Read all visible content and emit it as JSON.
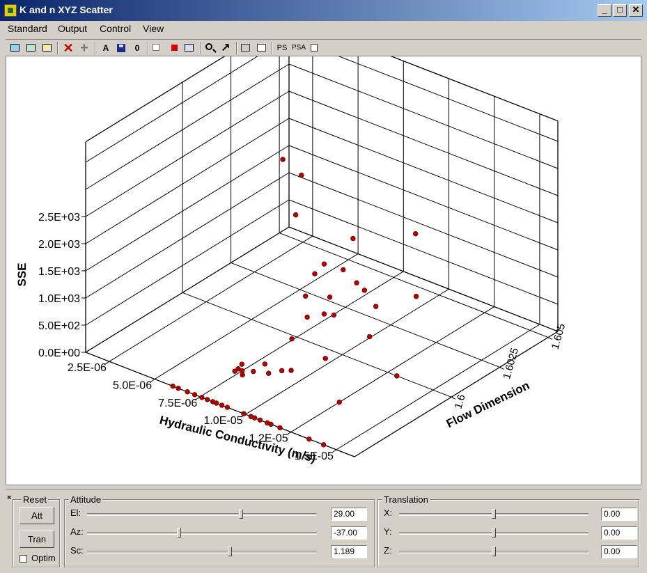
{
  "window": {
    "title": "K and n XYZ Scatter",
    "min_glyph": "_",
    "max_glyph": "□",
    "close_glyph": "✕"
  },
  "menu": [
    "Standard",
    "Output",
    "Control",
    "View"
  ],
  "toolbar": [
    {
      "name": "new-icon"
    },
    {
      "name": "refresh-icon"
    },
    {
      "name": "add-plot-icon"
    },
    {
      "name": "delete-icon",
      "glyph": "✕"
    },
    {
      "name": "add-icon",
      "glyph": "+"
    },
    {
      "name": "text-icon",
      "glyph": "A"
    },
    {
      "name": "save-icon"
    },
    {
      "name": "zero-icon",
      "glyph": "0"
    },
    {
      "name": "format-icon"
    },
    {
      "name": "color-icon"
    },
    {
      "name": "list-icon"
    },
    {
      "name": "zoom-icon"
    },
    {
      "name": "arrow-icon",
      "glyph": "↗"
    },
    {
      "name": "print-icon"
    },
    {
      "name": "print-preview-icon"
    },
    {
      "name": "ps-icon",
      "glyph": "PS"
    },
    {
      "name": "psa-icon",
      "glyph": "PSA"
    },
    {
      "name": "copy-icon"
    }
  ],
  "chart_data": {
    "type": "scatter",
    "xlabel": "Hydraulic Conductivity (m/s)",
    "ylabel": "Flow Dimension",
    "zlabel": "SSE",
    "x_ticks": [
      "2.5E-06",
      "5.0E-06",
      "7.5E-06",
      "1.0E-05",
      "1.2E-05",
      "1.5E-05"
    ],
    "y_ticks": [
      "1.6",
      "1.6025",
      "1.605"
    ],
    "z_ticks": [
      "0.0E+00",
      "5.0E+02",
      "1.0E+03",
      "1.5E+03",
      "2.0E+03",
      "2.5E+03"
    ],
    "point_color": "#b00000",
    "points": [
      [
        8.5e-06,
        1.599,
        2600
      ],
      [
        8.6e-06,
        1.5992,
        3300
      ],
      [
        8e-06,
        1.5988,
        3600
      ],
      [
        8.7e-06,
        1.605,
        960
      ],
      [
        8.8e-06,
        1.5997,
        1400
      ],
      [
        9.2e-06,
        1.6013,
        1750
      ],
      [
        9e-06,
        1.6,
        1540
      ],
      [
        9.3e-06,
        1.6007,
        1320
      ],
      [
        8.4e-06,
        1.5996,
        960
      ],
      [
        9.1e-06,
        1.6002,
        900
      ],
      [
        9.4e-06,
        1.6013,
        960
      ],
      [
        8.6e-06,
        1.5995,
        620
      ],
      [
        9e-06,
        1.6,
        620
      ],
      [
        9.3e-06,
        1.6018,
        700
      ],
      [
        8.5e-06,
        1.5988,
        360
      ],
      [
        9e-06,
        1.6005,
        490
      ],
      [
        9.5e-06,
        1.6022,
        340
      ],
      [
        9.8e-06,
        1.604,
        170
      ],
      [
        8.2e-06,
        1.5965,
        360
      ],
      [
        8e-06,
        1.5965,
        250
      ],
      [
        8e-06,
        1.5967,
        170
      ],
      [
        8.4e-06,
        1.5975,
        170
      ],
      [
        8.3e-06,
        1.597,
        130
      ],
      [
        7.6e-06,
        1.5967,
        110
      ],
      [
        7.7e-06,
        1.597,
        -10
      ],
      [
        8.5e-06,
        1.5976,
        -10
      ],
      [
        8.8e-06,
        1.598,
        -10
      ],
      [
        9.1e-06,
        1.5982,
        -10
      ],
      [
        9.6e-06,
        1.5995,
        -10
      ],
      [
        9.9e-06,
        1.6015,
        -10
      ],
      [
        6e-06,
        1.595,
        0
      ],
      [
        6.3e-06,
        1.595,
        0
      ],
      [
        6.8e-06,
        1.595,
        0
      ],
      [
        7.2e-06,
        1.595,
        0
      ],
      [
        7.6e-06,
        1.595,
        0
      ],
      [
        7.9e-06,
        1.595,
        0
      ],
      [
        8.2e-06,
        1.595,
        0
      ],
      [
        8.4e-06,
        1.595,
        0
      ],
      [
        8.7e-06,
        1.595,
        0
      ],
      [
        9e-06,
        1.595,
        0
      ],
      [
        9.9e-06,
        1.595,
        0
      ],
      [
        1.03e-05,
        1.595,
        0
      ],
      [
        1.05e-05,
        1.595,
        0
      ],
      [
        1.08e-05,
        1.595,
        0
      ],
      [
        1.12e-05,
        1.595,
        0
      ],
      [
        1.14e-05,
        1.595,
        0
      ],
      [
        1.19e-05,
        1.595,
        0
      ],
      [
        1.43e-05,
        1.595,
        0
      ],
      [
        1.3e-05,
        1.6,
        0
      ],
      [
        1.25e-05,
        1.5975,
        0
      ],
      [
        1.35e-05,
        1.595,
        0
      ]
    ]
  },
  "panel": {
    "close_glyph": "×",
    "reset": {
      "title": "Reset",
      "att_label": "Att",
      "tran_label": "Tran",
      "optim_label": "Optim"
    },
    "attitude": {
      "title": "Attitude",
      "rows": [
        {
          "label": "El:",
          "value": "29.00",
          "level": 0.67
        },
        {
          "label": "Az:",
          "value": "-37.00",
          "level": 0.4
        },
        {
          "label": "Sc:",
          "value": "1.189",
          "level": 0.62
        }
      ]
    },
    "translation": {
      "title": "Translation",
      "rows": [
        {
          "label": "X:",
          "value": "0.00",
          "level": 0.5
        },
        {
          "label": "Y:",
          "value": "0.00",
          "level": 0.5
        },
        {
          "label": "Z:",
          "value": "0.00",
          "level": 0.5
        }
      ]
    }
  }
}
